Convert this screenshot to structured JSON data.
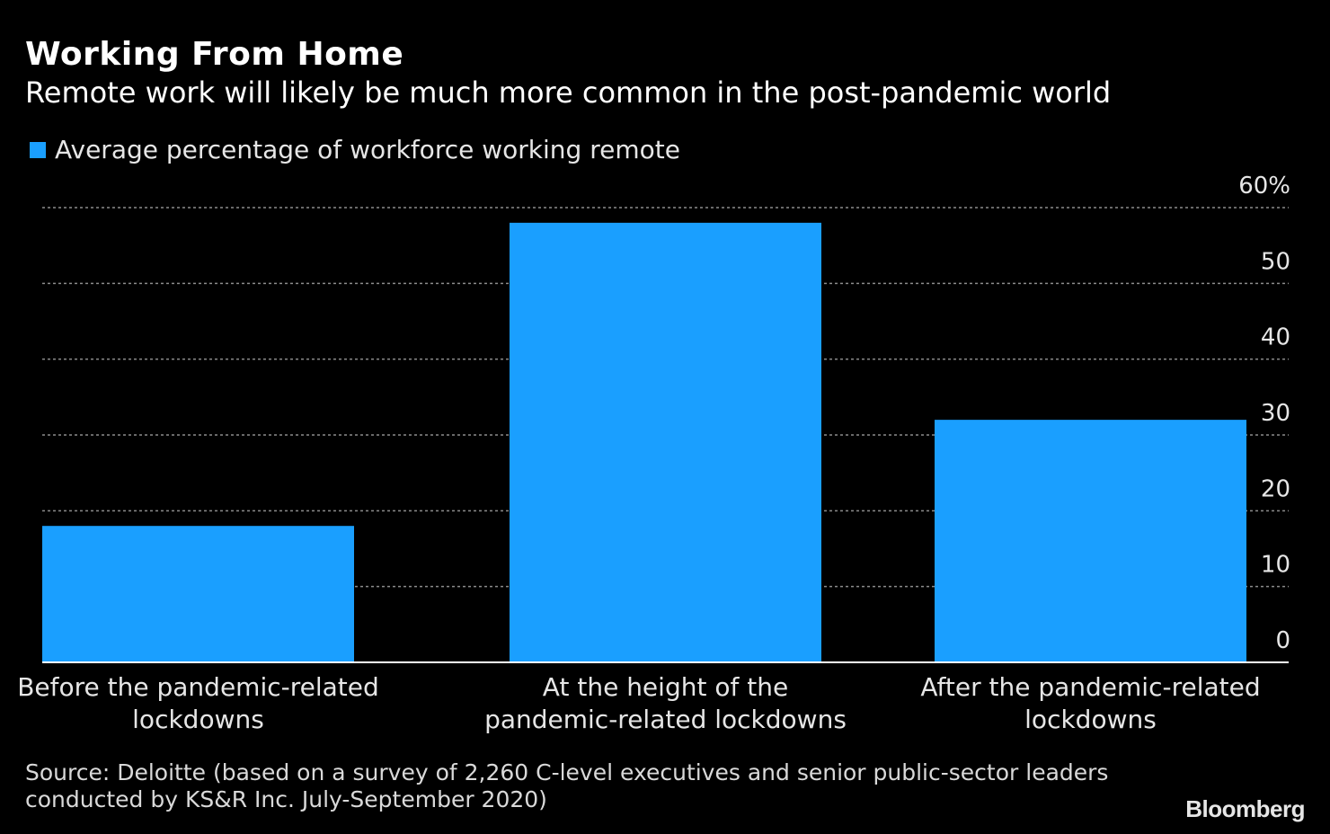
{
  "header": {
    "title": "Working From Home",
    "subtitle": "Remote work will likely be much more common in the post-pandemic world"
  },
  "chart_data": {
    "type": "bar",
    "title": "Working From Home",
    "subtitle": "Remote work will likely be much more common in the post-pandemic world",
    "categories": [
      [
        "Before the pandemic-related",
        "lockdowns"
      ],
      [
        "At the height of the",
        "pandemic-related lockdowns"
      ],
      [
        "After the pandemic-related",
        "lockdowns"
      ]
    ],
    "series": [
      {
        "name": "Average percentage of workforce working remote",
        "values": [
          18,
          58,
          32
        ],
        "color": "#1a9fff"
      }
    ],
    "ylim": [
      0,
      60
    ],
    "yticks": [
      0,
      10,
      20,
      30,
      40,
      50,
      60
    ],
    "ytick_labels": [
      "0",
      "10",
      "20",
      "30",
      "40",
      "50",
      "60%"
    ],
    "y_axis_side": "right",
    "grid": true,
    "grid_style": "dashed",
    "legend_position": "top-left",
    "xlabel": "",
    "ylabel": ""
  },
  "footer": {
    "source_line1": "Source: Deloitte (based on a survey of 2,260 C-level executives and senior public-sector leaders",
    "source_line2": "conducted by KS&R Inc. July-September 2020)",
    "brand": "Bloomberg"
  },
  "colors": {
    "background": "#000000",
    "bar": "#1a9fff",
    "grid": "#8c8c8c",
    "text": "#ffffff"
  }
}
